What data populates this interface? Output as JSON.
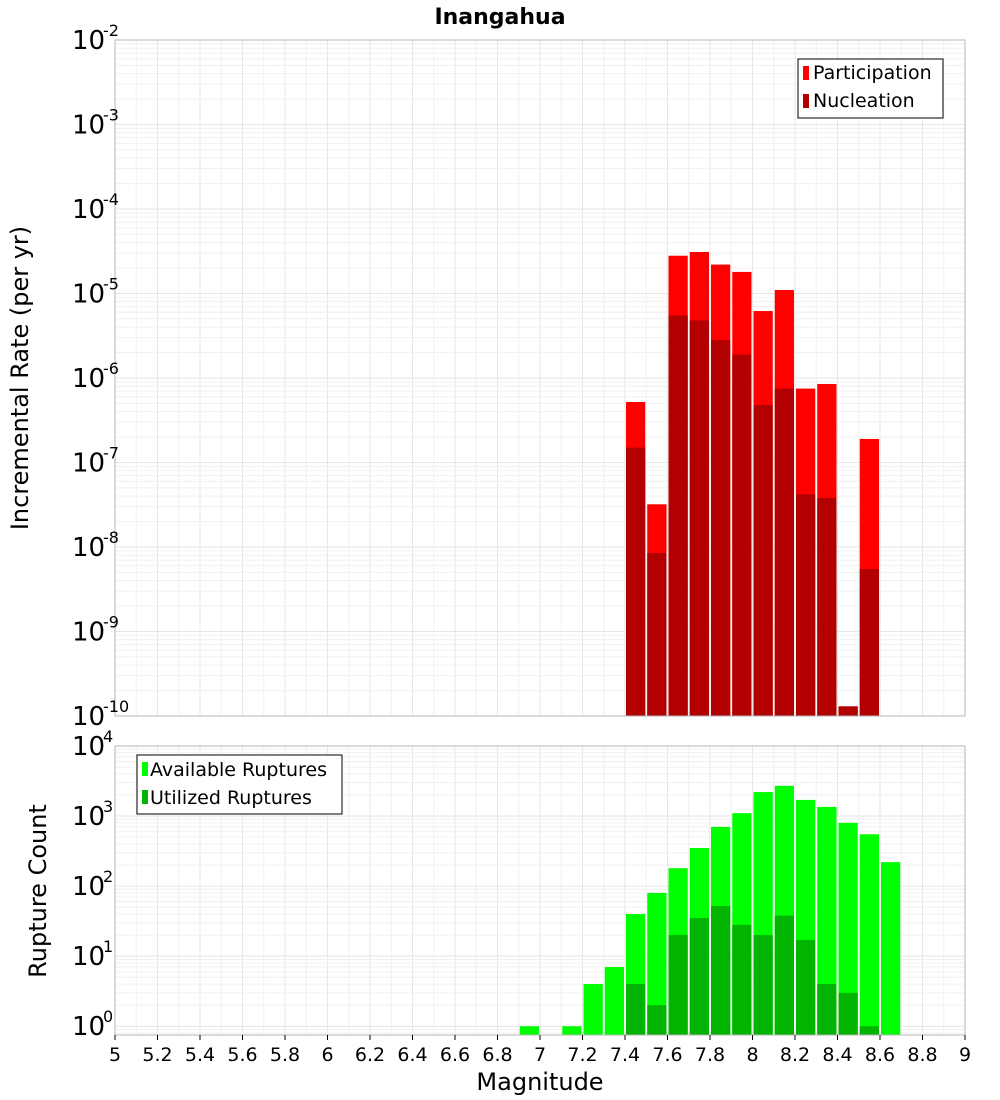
{
  "chart_data": [
    {
      "type": "bar",
      "title": "Inangahua",
      "xlabel": "",
      "ylabel": "Incremental Rate (per yr)",
      "yscale": "log",
      "ylim": [
        1e-10,
        0.01
      ],
      "xlim": [
        5,
        9
      ],
      "bin_width": 0.1,
      "x": [
        7.45,
        7.55,
        7.65,
        7.75,
        7.85,
        7.95,
        8.05,
        8.15,
        8.25,
        8.35,
        8.45,
        8.55
      ],
      "y_ticks": [
        {
          "base": "10",
          "exp": "-2"
        },
        {
          "base": "10",
          "exp": "-3"
        },
        {
          "base": "10",
          "exp": "-4"
        },
        {
          "base": "10",
          "exp": "-5"
        },
        {
          "base": "10",
          "exp": "-6"
        },
        {
          "base": "10",
          "exp": "-7"
        },
        {
          "base": "10",
          "exp": "-8"
        },
        {
          "base": "10",
          "exp": "-9"
        },
        {
          "base": "10",
          "exp": "-10"
        }
      ],
      "y_tick_values": [
        0.01,
        0.001,
        0.0001,
        1e-05,
        1e-06,
        1e-07,
        1e-08,
        1e-09,
        1e-10
      ],
      "series": [
        {
          "name": "Participation",
          "color": "#ff0000",
          "values": [
            5.2e-07,
            3.2e-08,
            2.8e-05,
            3.1e-05,
            2.2e-05,
            1.8e-05,
            6.2e-06,
            1.1e-05,
            7.5e-07,
            8.5e-07,
            1.3e-10,
            1.9e-07
          ]
        },
        {
          "name": "Nucleation",
          "color": "#b20000",
          "values": [
            1.5e-07,
            8.5e-09,
            5.5e-06,
            4.8e-06,
            2.8e-06,
            1.9e-06,
            4.8e-07,
            7.5e-07,
            4.2e-08,
            3.8e-08,
            1.3e-10,
            5.5e-09
          ]
        }
      ],
      "legend": "top-right"
    },
    {
      "type": "bar",
      "title": "",
      "xlabel": "Magnitude",
      "ylabel": "Rupture Count",
      "yscale": "log",
      "ylim": [
        0.75,
        10000
      ],
      "xlim": [
        5,
        9
      ],
      "bin_width": 0.1,
      "x": [
        6.95,
        7.15,
        7.25,
        7.35,
        7.45,
        7.55,
        7.65,
        7.75,
        7.85,
        7.95,
        8.05,
        8.15,
        8.25,
        8.35,
        8.45,
        8.55,
        8.65
      ],
      "x_ticks": [
        "5",
        "5.2",
        "5.4",
        "5.6",
        "5.8",
        "6",
        "6.2",
        "6.4",
        "6.6",
        "6.8",
        "7",
        "7.2",
        "7.4",
        "7.6",
        "7.8",
        "8",
        "8.2",
        "8.4",
        "8.6",
        "8.8",
        "9"
      ],
      "y_ticks": [
        {
          "base": "10",
          "exp": "4"
        },
        {
          "base": "10",
          "exp": "3"
        },
        {
          "base": "10",
          "exp": "2"
        },
        {
          "base": "10",
          "exp": "1"
        },
        {
          "base": "10",
          "exp": "0"
        }
      ],
      "y_tick_values": [
        10000.0,
        1000.0,
        100.0,
        10.0,
        1
      ],
      "series": [
        {
          "name": "Available Ruptures",
          "color": "#00ff00",
          "values": [
            1,
            1,
            4,
            7,
            40,
            80,
            180,
            350,
            700,
            1100,
            2200,
            2700,
            1700,
            1350,
            800,
            550,
            220
          ]
        },
        {
          "name": "Utilized Ruptures",
          "color": "#00b400",
          "values": [
            0,
            0,
            0,
            0,
            4,
            2,
            20,
            35,
            52,
            28,
            20,
            38,
            17,
            4,
            3,
            1,
            0
          ]
        }
      ],
      "legend": "top-left"
    }
  ]
}
